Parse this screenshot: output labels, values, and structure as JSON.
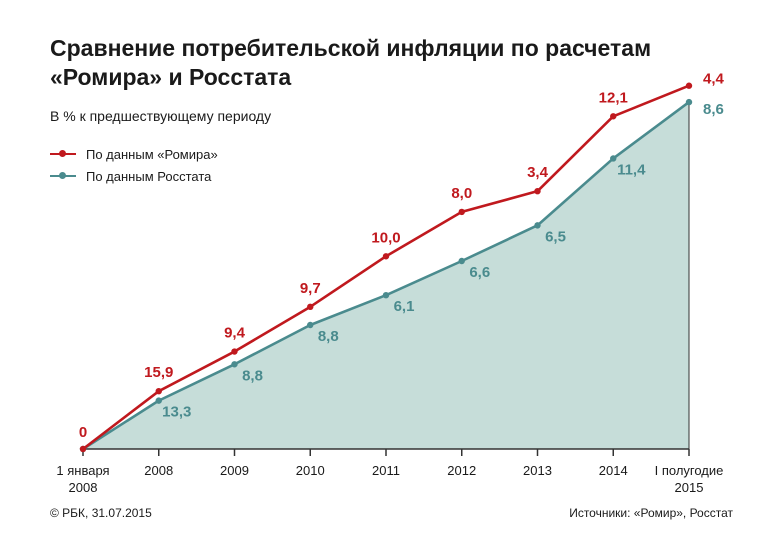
{
  "title": "Сравнение потребительской инфляции по расчетам «Ромира» и Росстата",
  "subtitle": "В % к предшествующему периоду",
  "footer": {
    "copyright": "© РБК, 31.07.2015",
    "sources": "Источники: «Ромир», Росстат"
  },
  "colors": {
    "romir": "#c0191e",
    "rosstat": "#4a8b8e",
    "area": "#c6ddd9",
    "axis": "#333333"
  },
  "chart_data": {
    "type": "line",
    "categories": [
      "1 января 2008",
      "2008",
      "2009",
      "2010",
      "2011",
      "2012",
      "2013",
      "2014",
      "I полугодие 2015"
    ],
    "series": [
      {
        "name": "По данным «Ромира»",
        "labels": [
          "0",
          "15,9",
          "9,4",
          "9,7",
          "10,0",
          "8,0",
          "3,4",
          "12,1",
          "4,4"
        ],
        "cumulative": [
          0,
          15.9,
          26.8,
          39.1,
          53.0,
          65.2,
          70.9,
          91.5,
          99.9
        ]
      },
      {
        "name": "По данным Росстата",
        "labels": [
          "",
          "13,3",
          "8,8",
          "8,8",
          "6,1",
          "6,6",
          "6,5",
          "11,4",
          "8,6"
        ],
        "cumulative": [
          0,
          13.3,
          23.3,
          34.1,
          42.3,
          51.7,
          61.5,
          79.9,
          95.4
        ]
      }
    ],
    "ylim": [
      0,
      110
    ],
    "grid": false,
    "legend": "top-left"
  }
}
